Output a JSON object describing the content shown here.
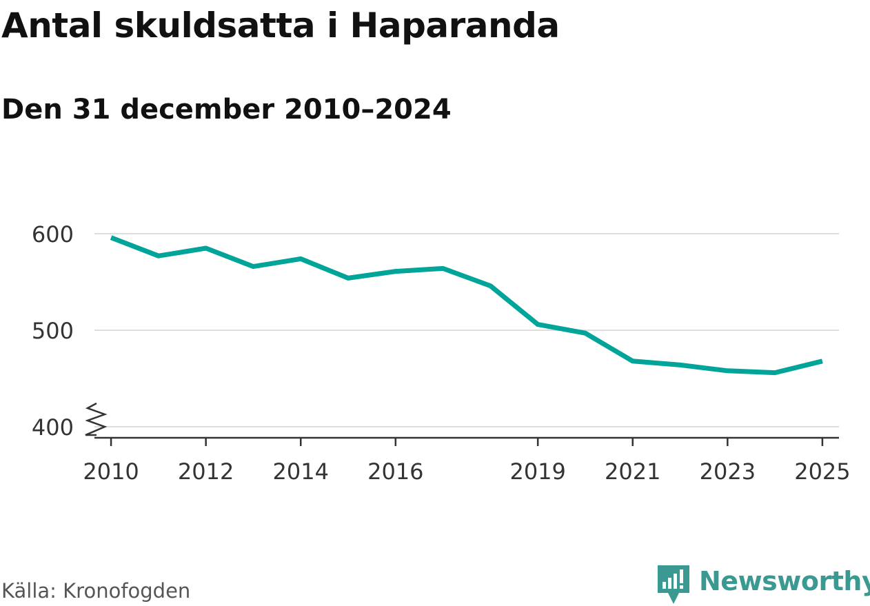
{
  "header": {
    "title": "Antal skuldsatta i Haparanda",
    "subtitle": "Den 31 december 2010–2024"
  },
  "footer": {
    "source": "Källa: Kronofogden",
    "brand": "Newsworthy"
  },
  "colors": {
    "line": "#00a499",
    "grid": "#dddddd",
    "axis": "#333333",
    "brand": "#3a9a92"
  },
  "chart_data": {
    "type": "line",
    "title": "Antal skuldsatta i Haparanda",
    "subtitle": "Den 31 december 2010–2024",
    "xlabel": "",
    "ylabel": "",
    "x": [
      2010,
      2011,
      2012,
      2013,
      2014,
      2015,
      2016,
      2017,
      2018,
      2019,
      2020,
      2021,
      2022,
      2023,
      2024,
      2025
    ],
    "series": [
      {
        "name": "Antal skuldsatta",
        "values": [
          596,
          577,
          585,
          566,
          574,
          554,
          561,
          564,
          546,
          506,
          497,
          468,
          464,
          458,
          456,
          468
        ]
      }
    ],
    "xticks": [
      "2010",
      "2012",
      "2014",
      "2016",
      "2019",
      "2021",
      "2023",
      "2025"
    ],
    "yticks": [
      "400",
      "500",
      "600"
    ],
    "xlim": [
      2009.65,
      2025.35
    ],
    "ylim": [
      400,
      600
    ],
    "grid": true,
    "legend": "none",
    "axis_break": true
  }
}
